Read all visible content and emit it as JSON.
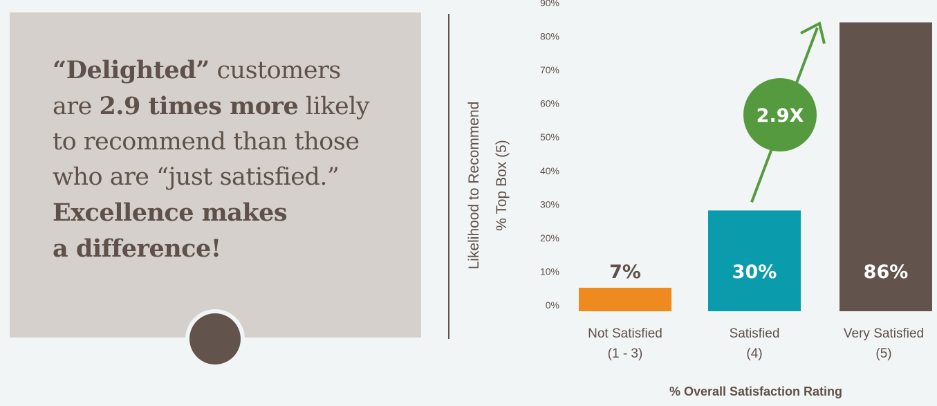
{
  "quote": {
    "line1_bold": "“Delighted”",
    "line1_rest": " customers",
    "line2_pre": "are ",
    "line2_bold": "2.9 times more",
    "line2_rest": " likely",
    "line3": "to recommend than those",
    "line4": "who are “just satisfied.”",
    "line5_bold": "Excellence makes",
    "line6_bold": "a difference!"
  },
  "chart_data": {
    "type": "bar",
    "categories": [
      {
        "line1": "Not Satisfied",
        "line2": "(1 - 3)"
      },
      {
        "line1": "Satisfied",
        "line2": "(4)"
      },
      {
        "line1": "Very Satisfied",
        "line2": "(5)"
      }
    ],
    "values": [
      7,
      30,
      86
    ],
    "value_labels": [
      "7%",
      "30%",
      "86%"
    ],
    "colors": [
      "#ee8a1e",
      "#0a9cad",
      "#62544c"
    ],
    "label_colors": [
      "#5f5049",
      "#ffffff",
      "#ffffff"
    ],
    "ylim": [
      0,
      90
    ],
    "yticks": [
      "0%",
      "10%",
      "20%",
      "30%",
      "40%",
      "50%",
      "60%",
      "70%",
      "80%",
      "90%"
    ],
    "ylabel_line1": "Likelihood to Recommend",
    "ylabel_line2": "% Top Box (5)",
    "xlabel": "% Overall Satisfaction Rating",
    "annotation": {
      "text": "2.9X",
      "color": "#559a3f"
    },
    "grid": false
  }
}
